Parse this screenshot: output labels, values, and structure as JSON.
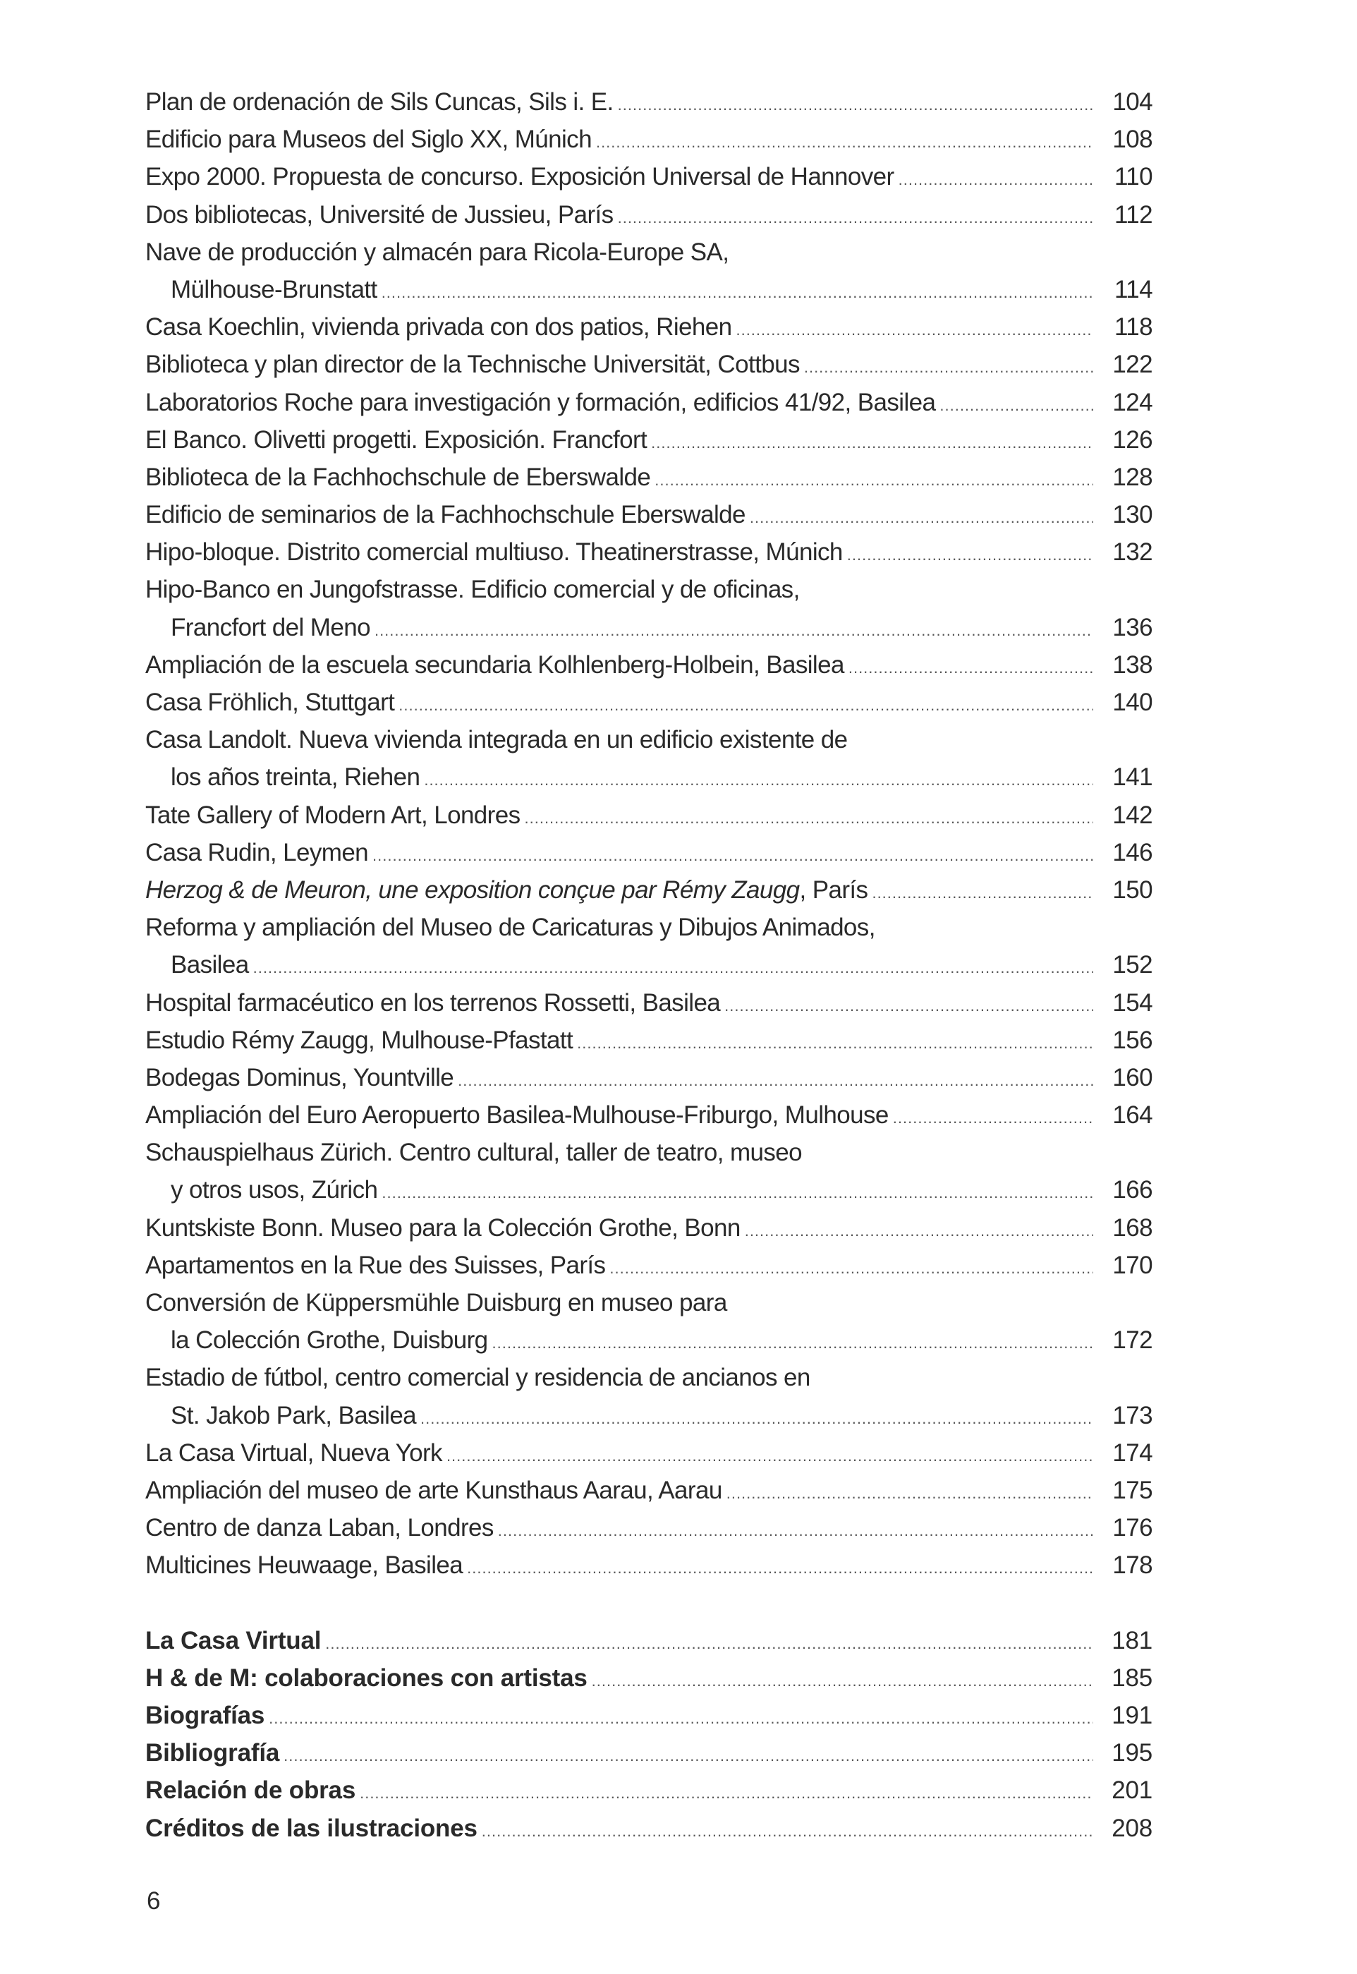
{
  "entries": [
    {
      "lines": [
        "Plan de ordenación de Sils Cuncas, Sils i. E."
      ],
      "page": "104"
    },
    {
      "lines": [
        "Edificio para Museos del Siglo XX, Múnich"
      ],
      "page": "108"
    },
    {
      "lines": [
        "Expo 2000. Propuesta de concurso. Exposición Universal de Hannover"
      ],
      "page": "110"
    },
    {
      "lines": [
        "Dos bibliotecas, Université de Jussieu, París"
      ],
      "page": "112"
    },
    {
      "lines": [
        "Nave de producción y almacén para Ricola-Europe SA,",
        "Mülhouse-Brunstatt"
      ],
      "page": "114"
    },
    {
      "lines": [
        "Casa Koechlin, vivienda privada con dos patios, Riehen"
      ],
      "page": "118"
    },
    {
      "lines": [
        "Biblioteca y plan director de la Technische Universität, Cottbus"
      ],
      "page": "122"
    },
    {
      "lines": [
        "Laboratorios Roche para investigación y formación, edificios 41/92, Basilea"
      ],
      "page": "124"
    },
    {
      "lines": [
        "El Banco. Olivetti progetti. Exposición. Francfort"
      ],
      "page": "126"
    },
    {
      "lines": [
        "Biblioteca de la Fachhochschule de Eberswalde"
      ],
      "page": "128"
    },
    {
      "lines": [
        "Edificio de seminarios de la Fachhochschule Eberswalde"
      ],
      "page": "130"
    },
    {
      "lines": [
        "Hipo-bloque. Distrito comercial multiuso. Theatinerstrasse, Múnich"
      ],
      "page": "132"
    },
    {
      "lines": [
        "Hipo-Banco en Jungofstrasse. Edificio comercial y de oficinas,",
        "Francfort del Meno"
      ],
      "page": "136"
    },
    {
      "lines": [
        "Ampliación de la escuela secundaria Kolhlenberg-Holbein, Basilea"
      ],
      "page": "138"
    },
    {
      "lines": [
        "Casa Fröhlich, Stuttgart"
      ],
      "page": "140"
    },
    {
      "lines": [
        "Casa Landolt. Nueva vivienda integrada en un edificio existente de",
        "los años treinta, Riehen"
      ],
      "page": "141"
    },
    {
      "lines": [
        "Tate Gallery of Modern Art, Londres"
      ],
      "page": "142"
    },
    {
      "lines": [
        "Casa Rudin, Leymen"
      ],
      "page": "146"
    },
    {
      "italic": "Herzog & de Meuron, une exposition conçue par Rémy Zaugg",
      "lines": [
        ", París"
      ],
      "page": "150"
    },
    {
      "lines": [
        "Reforma y ampliación del Museo de Caricaturas y Dibujos Animados,",
        "Basilea"
      ],
      "page": "152"
    },
    {
      "lines": [
        "Hospital farmacéutico en los terrenos Rossetti, Basilea"
      ],
      "page": "154"
    },
    {
      "lines": [
        "Estudio Rémy Zaugg, Mulhouse-Pfastatt"
      ],
      "page": "156"
    },
    {
      "lines": [
        "Bodegas Dominus, Yountville"
      ],
      "page": "160"
    },
    {
      "lines": [
        "Ampliación del Euro Aeropuerto Basilea-Mulhouse-Friburgo, Mulhouse"
      ],
      "page": "164"
    },
    {
      "lines": [
        "Schauspielhaus Zürich. Centro cultural, taller de teatro, museo",
        "y otros usos, Zúrich"
      ],
      "page": "166"
    },
    {
      "lines": [
        "Kuntskiste Bonn. Museo para la Colección Grothe, Bonn"
      ],
      "page": "168"
    },
    {
      "lines": [
        "Apartamentos en la Rue des Suisses, París"
      ],
      "page": "170"
    },
    {
      "lines": [
        "Conversión de Küppersmühle Duisburg en museo para",
        "la Colección Grothe, Duisburg"
      ],
      "page": "172"
    },
    {
      "lines": [
        "Estadio de fútbol, centro comercial y residencia de ancianos en",
        "St. Jakob Park, Basilea"
      ],
      "page": "173"
    },
    {
      "lines": [
        "La Casa Virtual, Nueva York"
      ],
      "page": "174"
    },
    {
      "lines": [
        "Ampliación del museo de arte Kunsthaus Aarau, Aarau"
      ],
      "page": "175"
    },
    {
      "lines": [
        "Centro de danza Laban, Londres"
      ],
      "page": "176"
    },
    {
      "lines": [
        "Multicines Heuwaage, Basilea"
      ],
      "page": "178"
    }
  ],
  "sections": [
    {
      "title": "La Casa Virtual",
      "page": "181"
    },
    {
      "title": "H & de M: colaboraciones con artistas",
      "page": "185"
    },
    {
      "title": "Biografías",
      "page": "191"
    },
    {
      "title": "Bibliografía",
      "page": "195"
    },
    {
      "title": "Relación de obras",
      "page": "201"
    },
    {
      "title": "Créditos de las ilustraciones",
      "page": "208"
    }
  ],
  "page_number": "6"
}
